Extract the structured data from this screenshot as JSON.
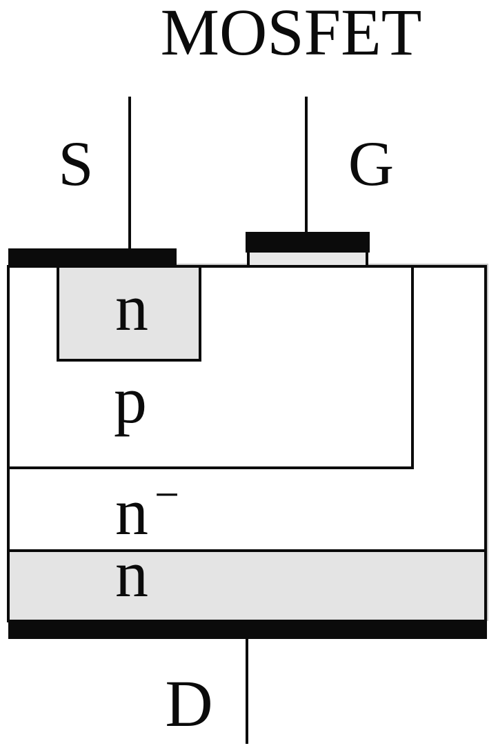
{
  "title": "MOSFET",
  "terminals": {
    "source": "S",
    "gate": "G",
    "drain": "D"
  },
  "regions": {
    "source_well": "n",
    "body": "p",
    "drift": "n",
    "drift_superscript": "−",
    "substrate": "n"
  },
  "colors": {
    "ink": "#0b0b0b",
    "doped_fill": "#e4e4e4",
    "oxide_fill": "#e8e8e8",
    "background": "#ffffff"
  }
}
